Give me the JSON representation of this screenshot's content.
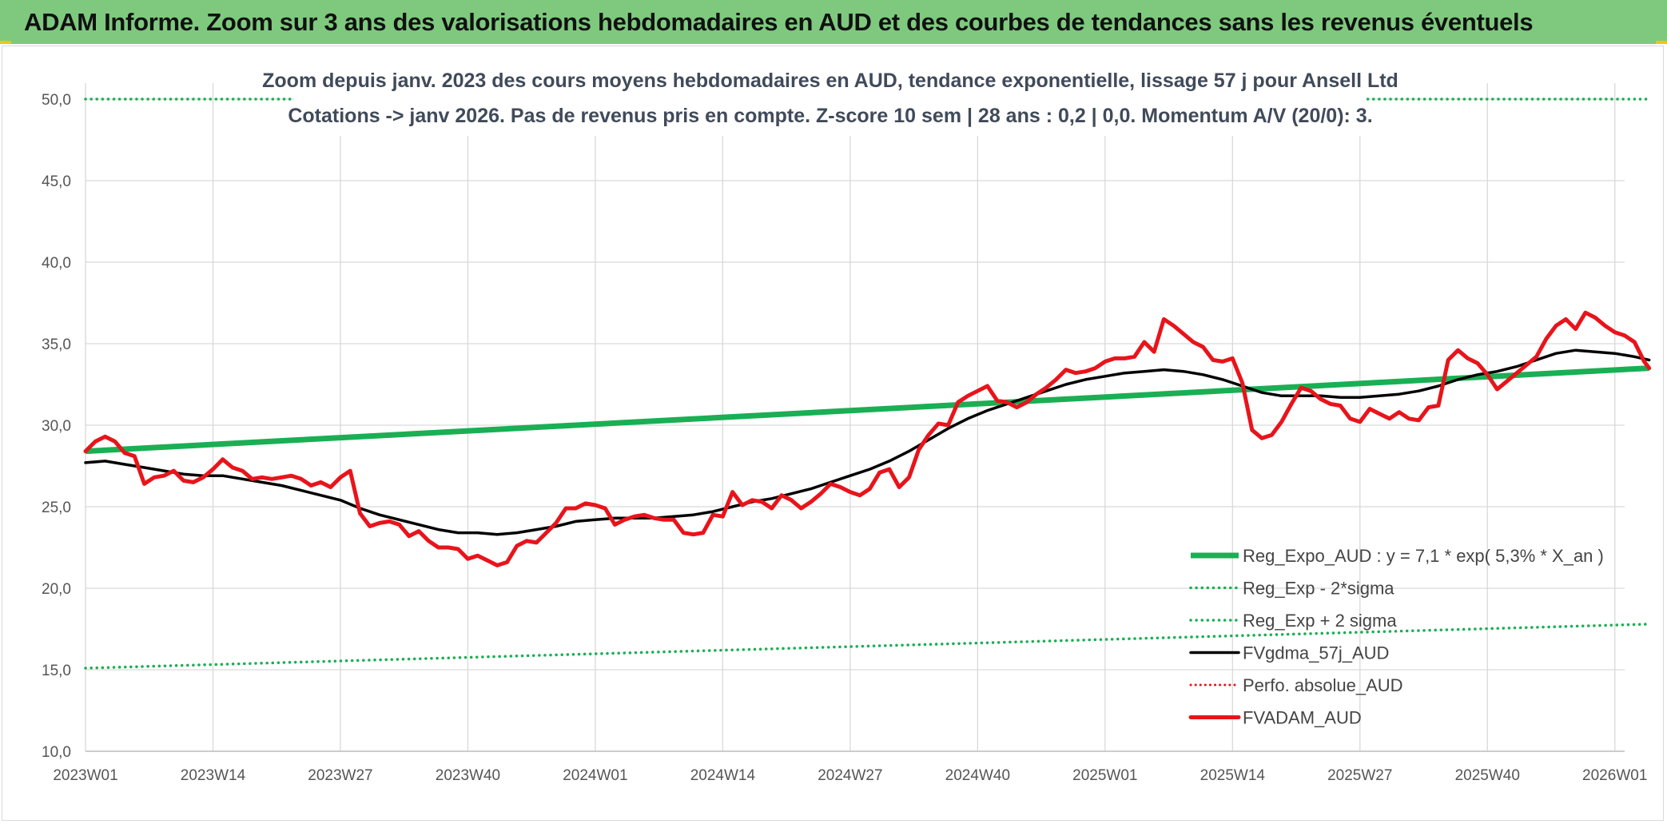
{
  "header": {
    "title": "ADAM Informe. Zoom sur 3 ans des valorisations hebdomadaires en AUD et des courbes de tendances sans les revenus éventuels"
  },
  "colors": {
    "header_bg": "#7ec97e",
    "reg_expo": "#1aaf54",
    "sigma": "#1aaf54",
    "fvgdma": "#000000",
    "perfo": "#e8141b",
    "fvadam": "#e8141b",
    "grid": "#d9d9d9"
  },
  "chart_data": {
    "type": "line",
    "title": [
      "Zoom depuis janv. 2023 des cours moyens hebdomadaires en AUD, tendance exponentielle, lissage 57 j pour Ansell Ltd",
      "Cotations -> janv 2026. Pas de revenus pris en compte. Z-score 10 sem | 28 ans : 0,2 | 0,0. Momentum A/V (20/0): 3."
    ],
    "x_range": [
      0,
      157
    ],
    "x_ticks": [
      {
        "x": 0,
        "label": "2023W01"
      },
      {
        "x": 13,
        "label": "2023W14"
      },
      {
        "x": 26,
        "label": "2023W27"
      },
      {
        "x": 39,
        "label": "2023W40"
      },
      {
        "x": 52,
        "label": "2024W01"
      },
      {
        "x": 65,
        "label": "2024W14"
      },
      {
        "x": 78,
        "label": "2024W27"
      },
      {
        "x": 91,
        "label": "2024W40"
      },
      {
        "x": 104,
        "label": "2025W01"
      },
      {
        "x": 117,
        "label": "2025W14"
      },
      {
        "x": 130,
        "label": "2025W27"
      },
      {
        "x": 143,
        "label": "2025W40"
      },
      {
        "x": 156,
        "label": "2026W01"
      }
    ],
    "ylim": [
      10,
      50
    ],
    "y_ticks": [
      {
        "v": 10,
        "label": "10,0"
      },
      {
        "v": 15,
        "label": "15,0"
      },
      {
        "v": 20,
        "label": "20,0"
      },
      {
        "v": 25,
        "label": "25,0"
      },
      {
        "v": 30,
        "label": "30,0"
      },
      {
        "v": 35,
        "label": "35,0"
      },
      {
        "v": 40,
        "label": "40,0"
      },
      {
        "v": 45,
        "label": "45,0"
      },
      {
        "v": 50,
        "label": "50,0"
      }
    ],
    "legend_position": "bottom-right",
    "series": [
      {
        "name": "Reg_Expo_AUD : y = 7,1 * exp( 5,3% *  X_an )",
        "key": "reg_expo",
        "style": "solid-thick",
        "points": [
          [
            0,
            28.4
          ],
          [
            159.5,
            33.5
          ]
        ]
      },
      {
        "name": "Reg_Exp - 2*sigma",
        "key": "sigma_low",
        "style": "dotted",
        "points": [
          [
            0,
            15.1
          ],
          [
            159.5,
            17.8
          ]
        ]
      },
      {
        "name": "Reg_Exp + 2 sigma",
        "key": "sigma_high",
        "style": "dotted",
        "points": [
          [
            0,
            50.0
          ],
          [
            159.5,
            50.0
          ]
        ]
      },
      {
        "name": "FVgdma_57j_AUD",
        "key": "fvgdma",
        "style": "solid",
        "points": [
          [
            0,
            27.7
          ],
          [
            2,
            27.8
          ],
          [
            4,
            27.6
          ],
          [
            6,
            27.4
          ],
          [
            8,
            27.2
          ],
          [
            10,
            27.0
          ],
          [
            12,
            26.9
          ],
          [
            14,
            26.9
          ],
          [
            16,
            26.7
          ],
          [
            18,
            26.5
          ],
          [
            20,
            26.3
          ],
          [
            22,
            26.0
          ],
          [
            24,
            25.7
          ],
          [
            26,
            25.4
          ],
          [
            28,
            24.9
          ],
          [
            30,
            24.5
          ],
          [
            32,
            24.2
          ],
          [
            34,
            23.9
          ],
          [
            36,
            23.6
          ],
          [
            38,
            23.4
          ],
          [
            40,
            23.4
          ],
          [
            42,
            23.3
          ],
          [
            44,
            23.4
          ],
          [
            46,
            23.6
          ],
          [
            48,
            23.8
          ],
          [
            50,
            24.1
          ],
          [
            52,
            24.2
          ],
          [
            54,
            24.3
          ],
          [
            56,
            24.3
          ],
          [
            58,
            24.3
          ],
          [
            60,
            24.4
          ],
          [
            62,
            24.5
          ],
          [
            64,
            24.7
          ],
          [
            66,
            25.0
          ],
          [
            68,
            25.3
          ],
          [
            70,
            25.5
          ],
          [
            72,
            25.8
          ],
          [
            74,
            26.1
          ],
          [
            76,
            26.5
          ],
          [
            78,
            26.9
          ],
          [
            80,
            27.3
          ],
          [
            82,
            27.8
          ],
          [
            84,
            28.4
          ],
          [
            86,
            29.1
          ],
          [
            88,
            29.8
          ],
          [
            90,
            30.4
          ],
          [
            92,
            30.9
          ],
          [
            94,
            31.3
          ],
          [
            96,
            31.7
          ],
          [
            98,
            32.1
          ],
          [
            100,
            32.5
          ],
          [
            102,
            32.8
          ],
          [
            104,
            33.0
          ],
          [
            106,
            33.2
          ],
          [
            108,
            33.3
          ],
          [
            110,
            33.4
          ],
          [
            112,
            33.3
          ],
          [
            114,
            33.1
          ],
          [
            116,
            32.8
          ],
          [
            118,
            32.4
          ],
          [
            120,
            32.0
          ],
          [
            122,
            31.8
          ],
          [
            124,
            31.8
          ],
          [
            126,
            31.8
          ],
          [
            128,
            31.7
          ],
          [
            130,
            31.7
          ],
          [
            132,
            31.8
          ],
          [
            134,
            31.9
          ],
          [
            136,
            32.1
          ],
          [
            138,
            32.4
          ],
          [
            140,
            32.8
          ],
          [
            142,
            33.1
          ],
          [
            144,
            33.3
          ],
          [
            146,
            33.6
          ],
          [
            148,
            34.0
          ],
          [
            150,
            34.4
          ],
          [
            152,
            34.6
          ],
          [
            154,
            34.5
          ],
          [
            156,
            34.4
          ],
          [
            158,
            34.2
          ],
          [
            159.5,
            34.0
          ]
        ]
      },
      {
        "name": "Perfo. absolue_AUD",
        "key": "perfo",
        "style": "dotted-red",
        "points": []
      },
      {
        "name": "FVADAM_AUD",
        "key": "fvadam",
        "style": "solid-thick-red",
        "points": [
          [
            0,
            28.4
          ],
          [
            1,
            29.0
          ],
          [
            2,
            29.3
          ],
          [
            3,
            29.0
          ],
          [
            4,
            28.3
          ],
          [
            5,
            28.1
          ],
          [
            6,
            26.4
          ],
          [
            7,
            26.8
          ],
          [
            8,
            26.9
          ],
          [
            9,
            27.2
          ],
          [
            10,
            26.6
          ],
          [
            11,
            26.5
          ],
          [
            12,
            26.8
          ],
          [
            13,
            27.3
          ],
          [
            14,
            27.9
          ],
          [
            15,
            27.4
          ],
          [
            16,
            27.2
          ],
          [
            17,
            26.7
          ],
          [
            18,
            26.8
          ],
          [
            19,
            26.7
          ],
          [
            20,
            26.8
          ],
          [
            21,
            26.9
          ],
          [
            22,
            26.7
          ],
          [
            23,
            26.3
          ],
          [
            24,
            26.5
          ],
          [
            25,
            26.2
          ],
          [
            26,
            26.8
          ],
          [
            27,
            27.2
          ],
          [
            28,
            24.6
          ],
          [
            29,
            23.8
          ],
          [
            30,
            24.0
          ],
          [
            31,
            24.1
          ],
          [
            32,
            23.9
          ],
          [
            33,
            23.2
          ],
          [
            34,
            23.5
          ],
          [
            35,
            22.9
          ],
          [
            36,
            22.5
          ],
          [
            37,
            22.5
          ],
          [
            38,
            22.4
          ],
          [
            39,
            21.8
          ],
          [
            40,
            22.0
          ],
          [
            41,
            21.7
          ],
          [
            42,
            21.4
          ],
          [
            43,
            21.6
          ],
          [
            44,
            22.6
          ],
          [
            45,
            22.9
          ],
          [
            46,
            22.8
          ],
          [
            47,
            23.4
          ],
          [
            48,
            24.0
          ],
          [
            49,
            24.9
          ],
          [
            50,
            24.9
          ],
          [
            51,
            25.2
          ],
          [
            52,
            25.1
          ],
          [
            53,
            24.9
          ],
          [
            54,
            23.9
          ],
          [
            55,
            24.2
          ],
          [
            56,
            24.4
          ],
          [
            57,
            24.5
          ],
          [
            58,
            24.3
          ],
          [
            59,
            24.2
          ],
          [
            60,
            24.2
          ],
          [
            61,
            23.4
          ],
          [
            62,
            23.3
          ],
          [
            63,
            23.4
          ],
          [
            64,
            24.5
          ],
          [
            65,
            24.4
          ],
          [
            66,
            25.9
          ],
          [
            67,
            25.1
          ],
          [
            68,
            25.4
          ],
          [
            69,
            25.3
          ],
          [
            70,
            24.9
          ],
          [
            71,
            25.7
          ],
          [
            72,
            25.4
          ],
          [
            73,
            24.9
          ],
          [
            74,
            25.3
          ],
          [
            75,
            25.8
          ],
          [
            76,
            26.4
          ],
          [
            77,
            26.2
          ],
          [
            78,
            25.9
          ],
          [
            79,
            25.7
          ],
          [
            80,
            26.1
          ],
          [
            81,
            27.1
          ],
          [
            82,
            27.3
          ],
          [
            83,
            26.2
          ],
          [
            84,
            26.8
          ],
          [
            85,
            28.5
          ],
          [
            86,
            29.4
          ],
          [
            87,
            30.1
          ],
          [
            88,
            30.0
          ],
          [
            89,
            31.4
          ],
          [
            90,
            31.8
          ],
          [
            91,
            32.1
          ],
          [
            92,
            32.4
          ],
          [
            93,
            31.5
          ],
          [
            94,
            31.4
          ],
          [
            95,
            31.1
          ],
          [
            96,
            31.4
          ],
          [
            97,
            31.9
          ],
          [
            98,
            32.3
          ],
          [
            99,
            32.8
          ],
          [
            100,
            33.4
          ],
          [
            101,
            33.2
          ],
          [
            102,
            33.3
          ],
          [
            103,
            33.5
          ],
          [
            104,
            33.9
          ],
          [
            105,
            34.1
          ],
          [
            106,
            34.1
          ],
          [
            107,
            34.2
          ],
          [
            108,
            35.1
          ],
          [
            109,
            34.5
          ],
          [
            110,
            36.5
          ],
          [
            111,
            36.1
          ],
          [
            112,
            35.6
          ],
          [
            113,
            35.1
          ],
          [
            114,
            34.8
          ],
          [
            115,
            34.0
          ],
          [
            116,
            33.9
          ],
          [
            117,
            34.1
          ],
          [
            118,
            32.6
          ],
          [
            119,
            29.7
          ],
          [
            120,
            29.2
          ],
          [
            121,
            29.4
          ],
          [
            122,
            30.2
          ],
          [
            123,
            31.3
          ],
          [
            124,
            32.3
          ],
          [
            125,
            32.1
          ],
          [
            126,
            31.6
          ],
          [
            127,
            31.3
          ],
          [
            128,
            31.2
          ],
          [
            129,
            30.4
          ],
          [
            130,
            30.2
          ],
          [
            131,
            31.0
          ],
          [
            132,
            30.7
          ],
          [
            133,
            30.4
          ],
          [
            134,
            30.8
          ],
          [
            135,
            30.4
          ],
          [
            136,
            30.3
          ],
          [
            137,
            31.1
          ],
          [
            138,
            31.2
          ],
          [
            139,
            34.0
          ],
          [
            140,
            34.6
          ],
          [
            141,
            34.1
          ],
          [
            142,
            33.8
          ],
          [
            143,
            33.1
          ],
          [
            144,
            32.2
          ],
          [
            145,
            32.7
          ],
          [
            146,
            33.2
          ],
          [
            147,
            33.7
          ],
          [
            148,
            34.2
          ],
          [
            149,
            35.3
          ],
          [
            150,
            36.1
          ],
          [
            151,
            36.5
          ],
          [
            152,
            35.9
          ],
          [
            153,
            36.9
          ],
          [
            154,
            36.6
          ],
          [
            155,
            36.1
          ],
          [
            156,
            35.7
          ],
          [
            157,
            35.5
          ],
          [
            158,
            35.1
          ],
          [
            159,
            33.9
          ],
          [
            159.5,
            33.5
          ]
        ]
      }
    ]
  }
}
